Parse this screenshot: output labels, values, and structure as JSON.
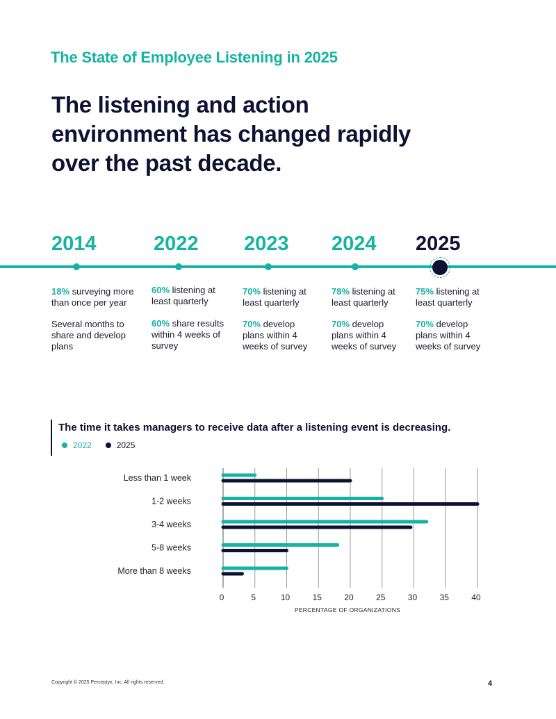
{
  "header": {
    "kicker": "The State of Employee Listening in 2025",
    "headline": "The listening and action environment has changed rapidly over the past decade."
  },
  "timeline": [
    {
      "year": "2014",
      "items": [
        {
          "hl": "18%",
          "text": " surveying more than once per year"
        },
        {
          "hl": "",
          "text": "Several months to share and develop plans"
        }
      ]
    },
    {
      "year": "2022",
      "items": [
        {
          "hl": "60%",
          "text": " listening at least quarterly"
        },
        {
          "hl": "60%",
          "text": " share results within 4 weeks of survey"
        }
      ]
    },
    {
      "year": "2023",
      "items": [
        {
          "hl": "70%",
          "text": " listening at least quarterly"
        },
        {
          "hl": "70%",
          "text": " develop plans within 4 weeks of survey"
        }
      ]
    },
    {
      "year": "2024",
      "items": [
        {
          "hl": "78%",
          "text": " listening at least quarterly"
        },
        {
          "hl": "70%",
          "text": " develop plans within 4 weeks of survey"
        }
      ]
    },
    {
      "year": "2025",
      "items": [
        {
          "hl": "75%",
          "text": " listening at least quarterly"
        },
        {
          "hl": "70%",
          "text": " develop plans within 4 weeks of survey"
        }
      ]
    }
  ],
  "colors": {
    "teal": "#15b3a3",
    "navy": "#0f1132"
  },
  "chart_data": {
    "type": "bar",
    "orientation": "horizontal",
    "title": "The time it takes managers to receive data after a listening event is decreasing.",
    "categories": [
      "Less than 1 week",
      "1-2 weeks",
      "3-4 weeks",
      "5-8 weeks",
      "More than 8 weeks"
    ],
    "series": [
      {
        "name": "2022",
        "color": "#15b3a3",
        "values": [
          5,
          25,
          32,
          18,
          10
        ]
      },
      {
        "name": "2025",
        "color": "#0f1132",
        "values": [
          20,
          40,
          29.5,
          10,
          3
        ]
      }
    ],
    "xlabel": "PERCENTAGE OF ORGANIZATIONS",
    "xlim": [
      0,
      40
    ],
    "xticks": [
      0,
      5,
      10,
      15,
      20,
      25,
      30,
      35,
      40
    ],
    "grid": true,
    "legend": "top-left"
  },
  "footer": {
    "copyright": "Copyright © 2025  Perceptyx, Inc. All rights reserved.",
    "page_number": "4"
  }
}
